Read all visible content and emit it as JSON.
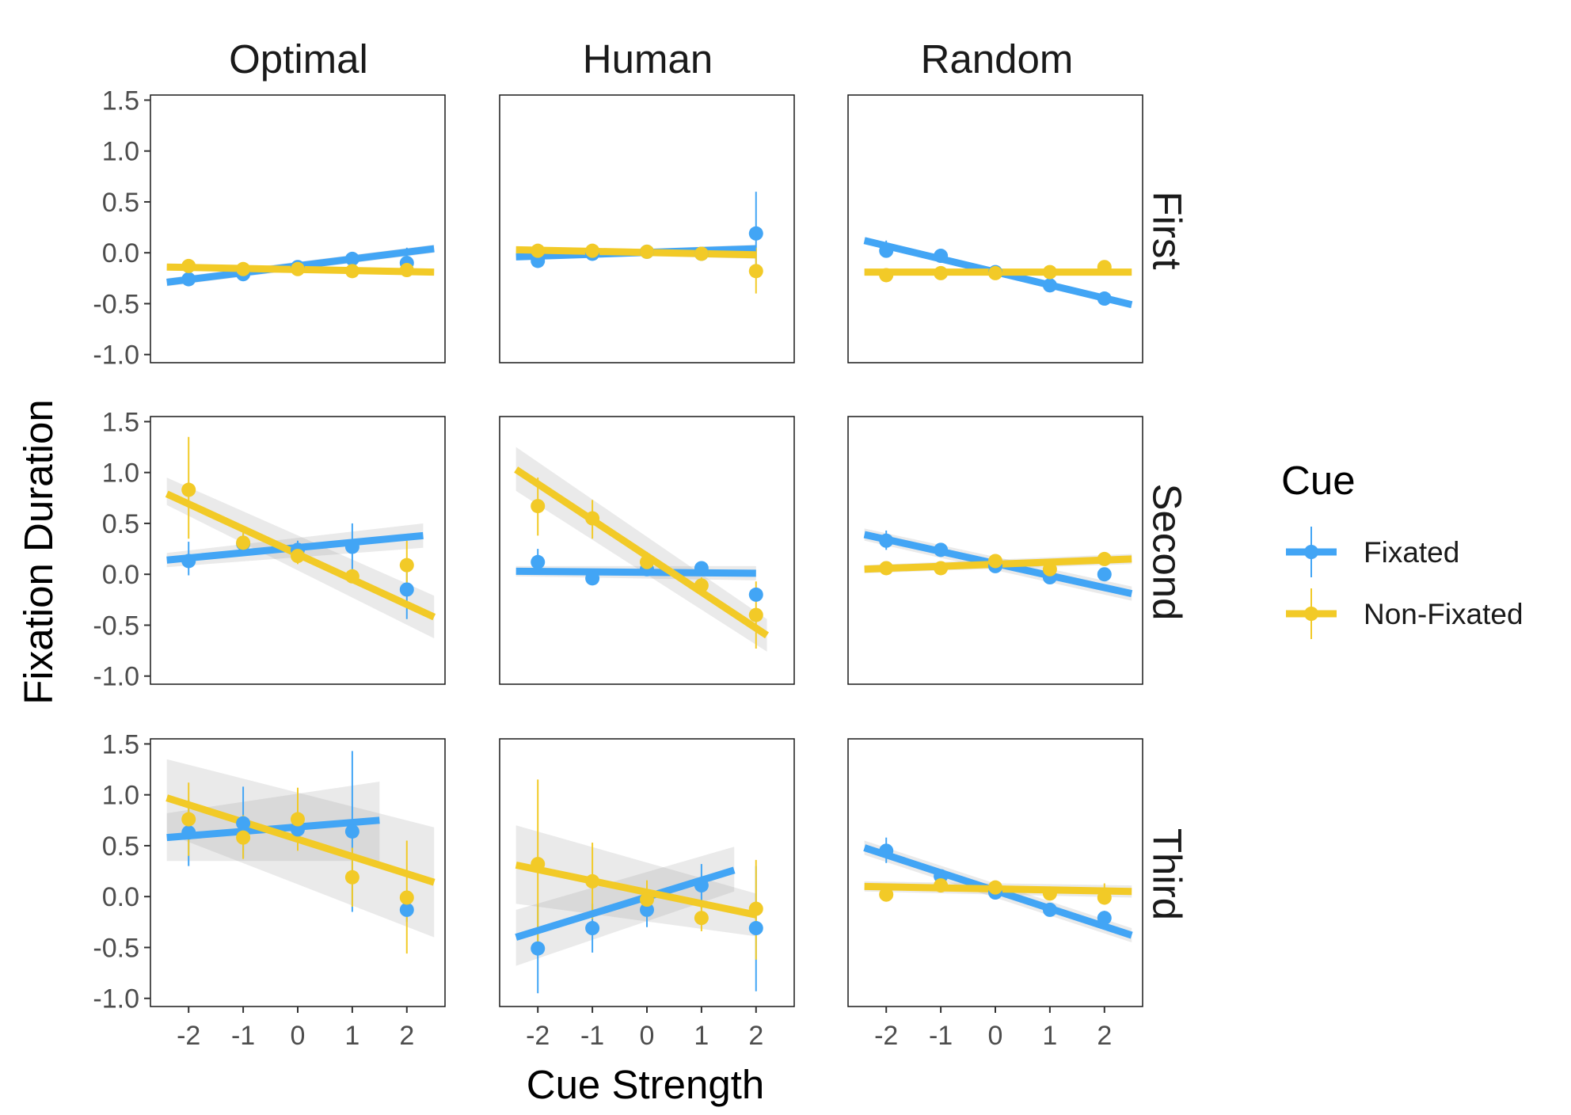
{
  "colors": {
    "Fixated": "#42A5F5",
    "Non-Fixated": "#F2CA27",
    "band": "#9e9e9e"
  },
  "chart_data": {
    "type": "scatter",
    "x_label": "Cue Strength",
    "y_label": "Fixation Duration",
    "x_ticks": [
      "-2",
      "-1",
      "0",
      "1",
      "2"
    ],
    "x_tick_values": [
      -2,
      -1,
      0,
      1,
      2
    ],
    "y_ticks": [
      "1.5",
      "1.0",
      "0.5",
      "0.0",
      "-0.5",
      "-1.0"
    ],
    "y_tick_values": [
      1.5,
      1.0,
      0.5,
      0.0,
      -0.5,
      -1.0
    ],
    "xlim": [
      -2.7,
      2.7
    ],
    "ylim": [
      -1.08,
      1.55
    ],
    "columns": [
      "Optimal",
      "Human",
      "Random"
    ],
    "rows": [
      "First",
      "Second",
      "Third"
    ],
    "legend": {
      "title": "Cue",
      "items": [
        "Fixated",
        "Non-Fixated"
      ],
      "position": "right"
    },
    "panels": [
      {
        "col": "Optimal",
        "row": "First",
        "series": [
          {
            "name": "Fixated",
            "x": [
              -2,
              -1,
              0,
              1,
              2
            ],
            "y": [
              -0.26,
              -0.21,
              -0.14,
              -0.06,
              -0.1
            ],
            "lo": [
              -0.3,
              -0.25,
              -0.18,
              -0.1,
              -0.16
            ],
            "hi": [
              -0.22,
              -0.17,
              -0.1,
              -0.02,
              0.05
            ],
            "fit_x": [
              -2.4,
              2.5
            ],
            "fit_y": [
              -0.29,
              0.04
            ],
            "band_lo": [
              -0.33,
              0.0
            ],
            "band_hi": [
              -0.25,
              0.08
            ]
          },
          {
            "name": "Non-Fixated",
            "x": [
              -2,
              -1,
              0,
              1,
              2
            ],
            "y": [
              -0.13,
              -0.16,
              -0.16,
              -0.18,
              -0.17
            ],
            "lo": [
              -0.16,
              -0.19,
              -0.19,
              -0.21,
              -0.2
            ],
            "hi": [
              -0.1,
              -0.13,
              -0.13,
              -0.15,
              -0.14
            ],
            "fit_x": [
              -2.4,
              2.5
            ],
            "fit_y": [
              -0.14,
              -0.19
            ],
            "band_lo": [
              -0.17,
              -0.22
            ],
            "band_hi": [
              -0.11,
              -0.16
            ]
          }
        ]
      },
      {
        "col": "Human",
        "row": "First",
        "series": [
          {
            "name": "Fixated",
            "x": [
              -2,
              -1,
              0,
              1,
              2
            ],
            "y": [
              -0.08,
              -0.01,
              0.01,
              -0.01,
              0.19
            ],
            "lo": [
              -0.12,
              -0.04,
              -0.02,
              -0.04,
              -0.2
            ],
            "hi": [
              -0.04,
              0.02,
              0.04,
              0.02,
              0.6
            ],
            "fit_x": [
              -2.4,
              2.0
            ],
            "fit_y": [
              -0.04,
              0.04
            ],
            "band_lo": [
              -0.07,
              0.0
            ],
            "band_hi": [
              -0.01,
              0.08
            ]
          },
          {
            "name": "Non-Fixated",
            "x": [
              -2,
              -1,
              0,
              1,
              2
            ],
            "y": [
              0.02,
              0.02,
              0.01,
              -0.01,
              -0.18
            ],
            "lo": [
              -0.01,
              -0.01,
              -0.02,
              -0.04,
              -0.4
            ],
            "hi": [
              0.05,
              0.05,
              0.04,
              0.02,
              0.05
            ],
            "fit_x": [
              -2.4,
              2.0
            ],
            "fit_y": [
              0.03,
              -0.02
            ],
            "band_lo": [
              0.0,
              -0.06
            ],
            "band_hi": [
              0.06,
              0.02
            ]
          }
        ]
      },
      {
        "col": "Random",
        "row": "First",
        "series": [
          {
            "name": "Fixated",
            "x": [
              -2,
              -1,
              0,
              1,
              2
            ],
            "y": [
              0.02,
              -0.03,
              -0.19,
              -0.32,
              -0.45
            ],
            "lo": [
              -0.02,
              -0.06,
              -0.22,
              -0.35,
              -0.48
            ],
            "hi": [
              0.12,
              0.0,
              -0.16,
              -0.29,
              -0.42
            ],
            "fit_x": [
              -2.4,
              2.5
            ],
            "fit_y": [
              0.12,
              -0.51
            ],
            "band_lo": [
              0.09,
              -0.54
            ],
            "band_hi": [
              0.15,
              -0.48
            ]
          },
          {
            "name": "Non-Fixated",
            "x": [
              -2,
              -1,
              0,
              1,
              2
            ],
            "y": [
              -0.22,
              -0.2,
              -0.2,
              -0.19,
              -0.14
            ],
            "lo": [
              -0.25,
              -0.23,
              -0.23,
              -0.22,
              -0.18
            ],
            "hi": [
              -0.19,
              -0.17,
              -0.17,
              -0.16,
              -0.08
            ],
            "fit_x": [
              -2.4,
              2.5
            ],
            "fit_y": [
              -0.19,
              -0.19
            ],
            "band_lo": [
              -0.22,
              -0.22
            ],
            "band_hi": [
              -0.16,
              -0.16
            ]
          }
        ]
      },
      {
        "col": "Optimal",
        "row": "Second",
        "series": [
          {
            "name": "Fixated",
            "x": [
              -2,
              -1,
              0,
              1,
              2
            ],
            "y": [
              0.13,
              0.3,
              0.24,
              0.27,
              -0.15
            ],
            "lo": [
              -0.01,
              0.2,
              0.15,
              0.05,
              -0.44
            ],
            "hi": [
              0.32,
              0.4,
              0.33,
              0.5,
              0.15
            ],
            "fit_x": [
              -2.4,
              2.3
            ],
            "fit_y": [
              0.14,
              0.38
            ],
            "band_lo": [
              0.07,
              0.26
            ],
            "band_hi": [
              0.21,
              0.5
            ]
          },
          {
            "name": "Non-Fixated",
            "x": [
              -2,
              -1,
              0,
              1,
              2
            ],
            "y": [
              0.83,
              0.31,
              0.18,
              -0.02,
              0.09
            ],
            "lo": [
              0.35,
              0.2,
              0.1,
              -0.07,
              -0.13
            ],
            "hi": [
              1.35,
              0.42,
              0.25,
              0.03,
              0.33
            ],
            "fit_x": [
              -2.4,
              2.5
            ],
            "fit_y": [
              0.79,
              -0.42
            ],
            "band_lo": [
              0.68,
              -0.63
            ],
            "band_hi": [
              0.95,
              -0.21
            ]
          }
        ]
      },
      {
        "col": "Human",
        "row": "Second",
        "series": [
          {
            "name": "Fixated",
            "x": [
              -2,
              -1,
              0,
              1,
              2
            ],
            "y": [
              0.12,
              -0.04,
              0.05,
              0.06,
              -0.2
            ],
            "lo": [
              0.0,
              -0.09,
              -0.01,
              0.0,
              -0.26
            ],
            "hi": [
              0.25,
              0.01,
              0.11,
              0.12,
              -0.14
            ],
            "fit_x": [
              -2.4,
              2.0
            ],
            "fit_y": [
              0.03,
              0.01
            ],
            "band_lo": [
              -0.02,
              -0.06
            ],
            "band_hi": [
              0.08,
              0.08
            ]
          },
          {
            "name": "Non-Fixated",
            "x": [
              -2,
              -1,
              0,
              1,
              2
            ],
            "y": [
              0.67,
              0.55,
              0.12,
              -0.11,
              -0.4
            ],
            "lo": [
              0.38,
              0.35,
              0.02,
              -0.19,
              -0.73
            ],
            "hi": [
              0.95,
              0.73,
              0.22,
              -0.03,
              -0.07
            ],
            "fit_x": [
              -2.4,
              2.2
            ],
            "fit_y": [
              1.03,
              -0.6
            ],
            "band_lo": [
              0.82,
              -0.76
            ],
            "band_hi": [
              1.25,
              -0.44
            ]
          }
        ]
      },
      {
        "col": "Random",
        "row": "Second",
        "series": [
          {
            "name": "Fixated",
            "x": [
              -2,
              -1,
              0,
              1,
              2
            ],
            "y": [
              0.33,
              0.24,
              0.08,
              -0.03,
              0.0
            ],
            "lo": [
              0.24,
              0.19,
              0.03,
              -0.08,
              -0.05
            ],
            "hi": [
              0.43,
              0.29,
              0.13,
              0.02,
              0.05
            ],
            "fit_x": [
              -2.4,
              2.5
            ],
            "fit_y": [
              0.39,
              -0.19
            ],
            "band_lo": [
              0.33,
              -0.26
            ],
            "band_hi": [
              0.45,
              -0.12
            ]
          },
          {
            "name": "Non-Fixated",
            "x": [
              -2,
              -1,
              0,
              1,
              2
            ],
            "y": [
              0.06,
              0.06,
              0.13,
              0.05,
              0.15
            ],
            "lo": [
              0.02,
              0.02,
              0.09,
              0.01,
              0.11
            ],
            "hi": [
              0.1,
              0.1,
              0.17,
              0.09,
              0.19
            ],
            "fit_x": [
              -2.4,
              2.5
            ],
            "fit_y": [
              0.05,
              0.15
            ],
            "band_lo": [
              0.01,
              0.1
            ],
            "band_hi": [
              0.09,
              0.2
            ]
          }
        ]
      },
      {
        "col": "Optimal",
        "row": "Third",
        "series": [
          {
            "name": "Fixated",
            "x": [
              -2,
              -1,
              0,
              1,
              2
            ],
            "y": [
              0.63,
              0.72,
              0.66,
              0.64,
              -0.13
            ],
            "lo": [
              0.3,
              0.38,
              0.5,
              -0.15,
              -0.25
            ],
            "hi": [
              0.95,
              1.08,
              0.82,
              1.43,
              -0.01
            ],
            "fit_x": [
              -2.4,
              1.5
            ],
            "fit_y": [
              0.58,
              0.75
            ],
            "band_lo": [
              0.35,
              0.35
            ],
            "band_hi": [
              0.82,
              1.13
            ]
          },
          {
            "name": "Non-Fixated",
            "x": [
              -2,
              -1,
              0,
              1,
              2
            ],
            "y": [
              0.76,
              0.58,
              0.76,
              0.19,
              -0.01
            ],
            "lo": [
              0.4,
              0.37,
              0.45,
              -0.1,
              -0.56
            ],
            "hi": [
              1.12,
              0.8,
              1.07,
              0.48,
              0.55
            ],
            "fit_x": [
              -2.4,
              2.5
            ],
            "fit_y": [
              0.97,
              0.14
            ],
            "band_lo": [
              0.62,
              -0.4
            ],
            "band_hi": [
              1.35,
              0.68
            ]
          }
        ]
      },
      {
        "col": "Human",
        "row": "Third",
        "series": [
          {
            "name": "Fixated",
            "x": [
              -2,
              -1,
              0,
              1,
              2
            ],
            "y": [
              -0.51,
              -0.31,
              -0.13,
              0.11,
              -0.31
            ],
            "lo": [
              -0.95,
              -0.55,
              -0.3,
              -0.12,
              -0.93
            ],
            "hi": [
              -0.08,
              -0.07,
              0.05,
              0.32,
              0.3
            ],
            "fit_x": [
              -2.4,
              1.6
            ],
            "fit_y": [
              -0.4,
              0.26
            ],
            "band_lo": [
              -0.68,
              0.05
            ],
            "band_hi": [
              -0.13,
              0.49
            ]
          },
          {
            "name": "Non-Fixated",
            "x": [
              -2,
              -1,
              0,
              1,
              2
            ],
            "y": [
              0.32,
              0.15,
              -0.03,
              -0.21,
              -0.12
            ],
            "lo": [
              -0.5,
              -0.22,
              -0.2,
              -0.34,
              -0.62
            ],
            "hi": [
              1.15,
              0.53,
              0.16,
              -0.08,
              0.36
            ],
            "fit_x": [
              -2.4,
              2.0
            ],
            "fit_y": [
              0.31,
              -0.18
            ],
            "band_lo": [
              -0.07,
              -0.39
            ],
            "band_hi": [
              0.7,
              0.03
            ]
          }
        ]
      },
      {
        "col": "Random",
        "row": "Third",
        "series": [
          {
            "name": "Fixated",
            "x": [
              -2,
              -1,
              0,
              1,
              2
            ],
            "y": [
              0.45,
              0.2,
              0.04,
              -0.13,
              -0.21
            ],
            "lo": [
              0.33,
              0.13,
              -0.01,
              -0.18,
              -0.28
            ],
            "hi": [
              0.58,
              0.27,
              0.09,
              -0.08,
              -0.14
            ],
            "fit_x": [
              -2.4,
              2.5
            ],
            "fit_y": [
              0.48,
              -0.38
            ],
            "band_lo": [
              0.41,
              -0.45
            ],
            "band_hi": [
              0.55,
              -0.31
            ]
          },
          {
            "name": "Non-Fixated",
            "x": [
              -2,
              -1,
              0,
              1,
              2
            ],
            "y": [
              0.02,
              0.11,
              0.09,
              0.03,
              -0.01
            ],
            "lo": [
              -0.05,
              0.05,
              0.03,
              -0.02,
              -0.08
            ],
            "hi": [
              0.1,
              0.17,
              0.15,
              0.08,
              0.13
            ],
            "fit_x": [
              -2.4,
              2.5
            ],
            "fit_y": [
              0.1,
              0.05
            ],
            "band_lo": [
              0.05,
              -0.01
            ],
            "band_hi": [
              0.15,
              0.11
            ]
          }
        ]
      }
    ]
  }
}
